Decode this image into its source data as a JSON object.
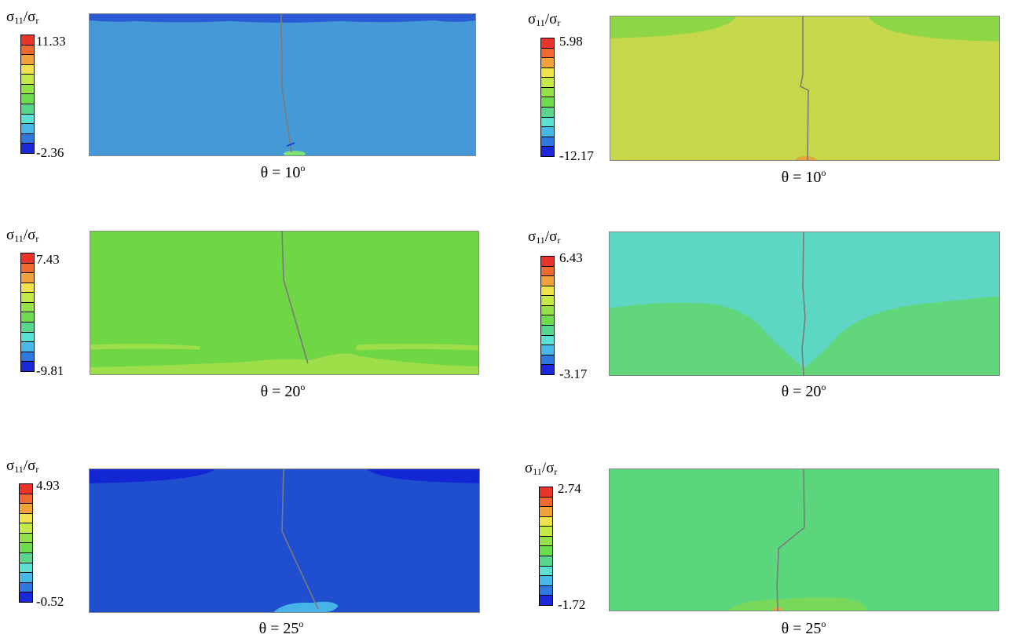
{
  "legend": {
    "title_symbol": "σ",
    "title_sub1": "11",
    "title_slash": "/σ",
    "title_sub2": "r",
    "colors": [
      "#e8342b",
      "#ee6a2f",
      "#f2a23c",
      "#f0e24e",
      "#c6e94a",
      "#93e24a",
      "#6ddc4c",
      "#58d68e",
      "#5be0d2",
      "#48b8e8",
      "#2f78e0",
      "#1a28d8"
    ]
  },
  "caption": {
    "prefix": "θ = ",
    "suffix": "o"
  },
  "panels": [
    {
      "max": "11.33",
      "min": "-2.36",
      "theta": "10",
      "bg": "#4499d6",
      "band": "#2a5ad6"
    },
    {
      "max": "5.98",
      "min": "-12.17",
      "theta": "10",
      "bg": "#c6d84a",
      "band": "#8fd646"
    },
    {
      "max": "7.43",
      "min": "-9.81",
      "theta": "20",
      "bg": "#6fd646",
      "band": "#8fd646"
    },
    {
      "max": "6.43",
      "min": "-3.17",
      "theta": "20",
      "bg": "#5dd6c4",
      "band": "#62d67a"
    },
    {
      "max": "4.93",
      "min": "-0.52",
      "theta": "25",
      "bg": "#1f4fcf",
      "band": "#1226d4"
    },
    {
      "max": "2.74",
      "min": "-1.72",
      "theta": "25",
      "bg": "#5cd67c",
      "band": "#78d85a"
    }
  ]
}
